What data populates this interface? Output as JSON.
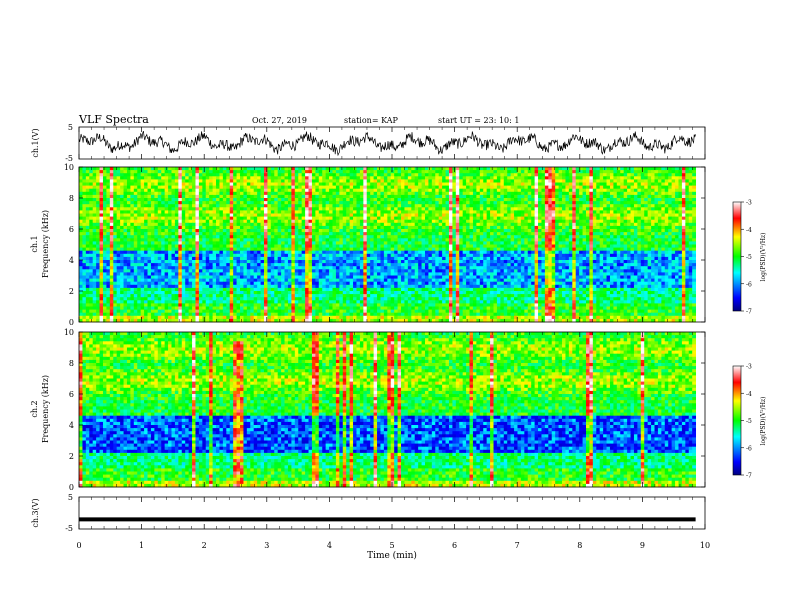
{
  "header": {
    "title": "VLF Spectra",
    "date": "Oct. 27, 2019",
    "station": "station= KAP",
    "start": "start  UT  =   23: 10: 1"
  },
  "chart_data": [
    {
      "type": "line",
      "ylabel": "ch.1(V)",
      "ylim": [
        -5,
        5
      ],
      "yticks": [
        "5",
        "-5"
      ],
      "xlim": [
        0,
        10
      ],
      "x_end": 9.85,
      "series": [
        {
          "description": "noisy waveform roughly between -3 and 3 V",
          "amplitude": 3
        }
      ]
    },
    {
      "type": "heatmap",
      "ylabel": "Frequency (kHz)",
      "channel_label": "ch.1",
      "ylim": [
        0,
        10
      ],
      "yticks": [
        "0",
        "2",
        "4",
        "6",
        "8",
        "10"
      ],
      "xlim": [
        0,
        10
      ],
      "x_end": 9.85,
      "colorbar": {
        "label": "log(PSD)(V²/Hz)",
        "range": [
          -7,
          -3
        ],
        "ticks": [
          "-3",
          "-4",
          "-5",
          "-6",
          "-7"
        ]
      }
    },
    {
      "type": "heatmap",
      "ylabel": "Frequency (kHz)",
      "channel_label": "ch.2",
      "ylim": [
        0,
        10
      ],
      "yticks": [
        "0",
        "2",
        "4",
        "6",
        "8",
        "10"
      ],
      "xlim": [
        0,
        10
      ],
      "x_end": 9.85,
      "colorbar": {
        "label": "log(PSD)(V²/Hz)",
        "range": [
          -7,
          -3
        ],
        "ticks": [
          "-3",
          "-4",
          "-5",
          "-6",
          "-7"
        ]
      }
    },
    {
      "type": "line",
      "ylabel": "ch.3(V)",
      "ylim": [
        -5,
        5
      ],
      "yticks": [
        "5",
        "-5"
      ],
      "xlim": [
        0,
        10
      ],
      "x_end": 9.85,
      "series": [
        {
          "description": "flat thick line near -2 V",
          "value": -2
        }
      ]
    }
  ],
  "xaxis": {
    "label": "Time (min)",
    "ticks": [
      "0",
      "1",
      "2",
      "3",
      "4",
      "5",
      "6",
      "7",
      "8",
      "9",
      "10"
    ]
  },
  "colors": {
    "axis": "#000000",
    "colormap": [
      "#00007f",
      "#0000ff",
      "#00ffff",
      "#00ff00",
      "#ffff00",
      "#ff0000",
      "#ffffff"
    ]
  }
}
